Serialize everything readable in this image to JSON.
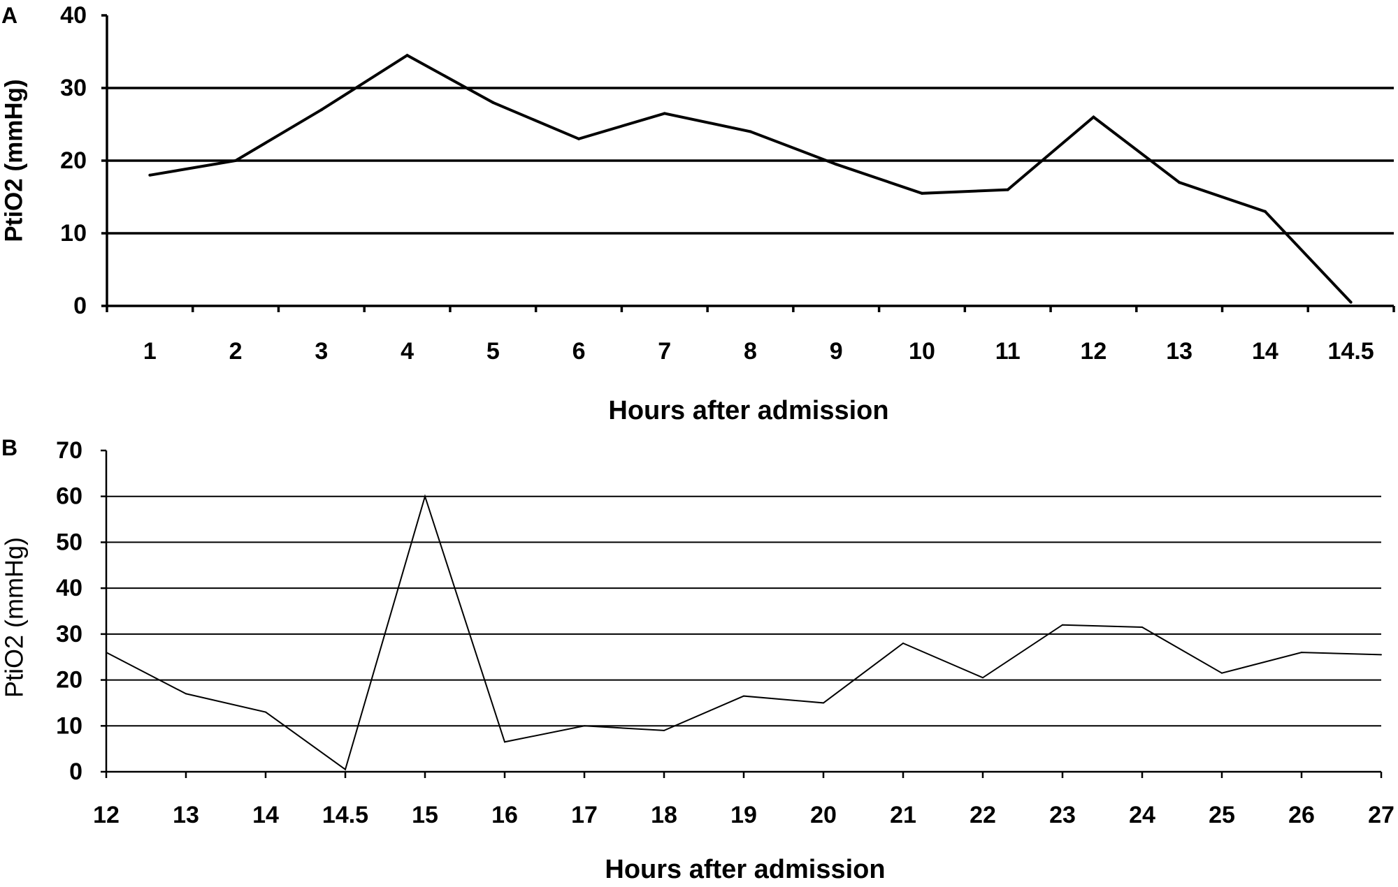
{
  "chart_data": [
    {
      "type": "line",
      "panel_label": "A",
      "categories": [
        "1",
        "2",
        "3",
        "4",
        "5",
        "6",
        "7",
        "8",
        "9",
        "10",
        "11",
        "12",
        "13",
        "14",
        "14.5"
      ],
      "series": [
        {
          "values": [
            18,
            20,
            27,
            34.5,
            28,
            23,
            26.5,
            24,
            19.5,
            15.5,
            16,
            26,
            17,
            13,
            0.5
          ]
        }
      ],
      "xlabel": "Hours after admission",
      "ylabel": "PtiO2 (mmHg)",
      "ylim": [
        0,
        40
      ],
      "yticks": [
        0,
        10,
        20,
        30,
        40
      ],
      "grid": true,
      "line_color": "#000000"
    },
    {
      "type": "line",
      "panel_label": "B",
      "categories": [
        "12",
        "13",
        "14",
        "14.5",
        "15",
        "16",
        "17",
        "18",
        "19",
        "20",
        "21",
        "22",
        "23",
        "24",
        "25",
        "26",
        "27"
      ],
      "series": [
        {
          "values": [
            26,
            17,
            13,
            0.5,
            60,
            6.5,
            10,
            9,
            16.5,
            15,
            28,
            20.5,
            32,
            31.5,
            21.5,
            26,
            25.5
          ]
        }
      ],
      "xlabel": "Hours after admission",
      "ylabel": "PtiO2 (mmHg)",
      "ylim": [
        0,
        70
      ],
      "yticks": [
        0,
        10,
        20,
        30,
        40,
        50,
        60,
        70
      ],
      "grid": true,
      "line_color": "#000000"
    }
  ]
}
